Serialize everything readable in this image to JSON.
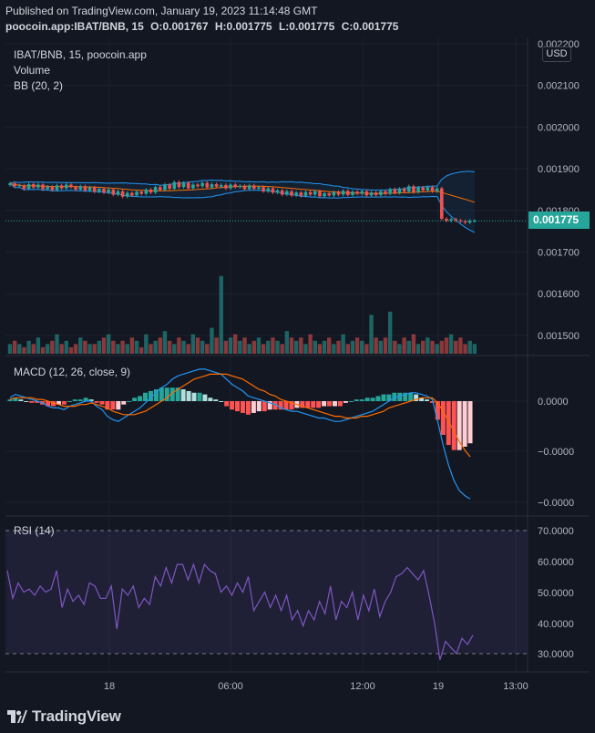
{
  "header": {
    "published": "Published on TradingView.com, January 19, 2023 11:14:48 GMT",
    "symbol_line": "poocoin.app:IBAT/BNB, 15",
    "o_label": "O:",
    "o_value": "0.001767",
    "h_label": "H:",
    "h_value": "0.001775",
    "l_label": "L:",
    "l_value": "0.001775",
    "c_label": "C:",
    "c_value": "0.001775"
  },
  "legends": {
    "main_symbol": "IBAT/BNB, 15, poocoin.app",
    "volume": "Volume",
    "bb": "BB (20, 2)",
    "macd": "MACD (12, 26, close, 9)",
    "rsi": "RSI (14)"
  },
  "currency_button": "USD",
  "last_price": "0.001775",
  "price_axis": [
    "0.002200",
    "0.002100",
    "0.002000",
    "0.001900",
    "0.001800",
    "0.001700",
    "0.001600",
    "0.001500"
  ],
  "macd_axis": [
    "0.0000",
    "−0.0000",
    "−0.0000"
  ],
  "rsi_axis": [
    "70.0000",
    "60.0000",
    "50.0000",
    "40.0000",
    "30.0000"
  ],
  "time_axis": [
    "18",
    "06:00",
    "12:00",
    "19",
    "13:00"
  ],
  "brand": "TradingView",
  "colors": {
    "background": "#131722",
    "up": "#26a69a",
    "down": "#ef5350",
    "bb_band": "#2196f3",
    "bb_basis": "#ff6d00",
    "macd_line": "#2196f3",
    "signal_line": "#ff6d00",
    "rsi_line": "#7e57c2",
    "rsi_band": "#7e57c2"
  },
  "chart_data": {
    "type": "line",
    "symbol": "IBAT/BNB",
    "interval": "15",
    "price_ylim": [
      0.00148,
      0.00222
    ],
    "close": [
      0.001865,
      0.001858,
      0.00186,
      0.001852,
      0.001863,
      0.001855,
      0.001862,
      0.001851,
      0.001857,
      0.001849,
      0.00186,
      0.001853,
      0.001862,
      0.001856,
      0.00185,
      0.001858,
      0.001848,
      0.001855,
      0.001845,
      0.001852,
      0.001843,
      0.00185,
      0.001838,
      0.001846,
      0.001833,
      0.001842,
      0.001836,
      0.001845,
      0.00184,
      0.00185,
      0.001843,
      0.001856,
      0.001849,
      0.001862,
      0.001852,
      0.001868,
      0.001856,
      0.001866,
      0.001853,
      0.001862,
      0.001858,
      0.001866,
      0.001855,
      0.001863,
      0.001857,
      0.001861,
      0.001853,
      0.001862,
      0.001856,
      0.001859,
      0.001851,
      0.00186,
      0.001852,
      0.001856,
      0.001846,
      0.001853,
      0.001843,
      0.001848,
      0.001838,
      0.001846,
      0.001836,
      0.001843,
      0.001835,
      0.001844,
      0.001838,
      0.001846,
      0.001834,
      0.001841,
      0.001836,
      0.001844,
      0.001838,
      0.001847,
      0.001837,
      0.001845,
      0.00184,
      0.001846,
      0.001836,
      0.001843,
      0.001837,
      0.001846,
      0.00184,
      0.001851,
      0.001842,
      0.001852,
      0.001845,
      0.001858,
      0.001844,
      0.001855,
      0.001848,
      0.001856,
      0.001846,
      0.001853,
      0.00178,
      0.001775,
      0.001779,
      0.001776,
      0.001774,
      0.001771,
      0.001775,
      0.001775
    ],
    "volume": [
      3,
      4,
      3,
      2,
      4,
      3,
      5,
      2,
      3,
      4,
      6,
      3,
      4,
      2,
      3,
      5,
      4,
      3,
      3,
      4,
      5,
      6,
      4,
      3,
      4,
      3,
      5,
      4,
      2,
      6,
      3,
      4,
      5,
      7,
      4,
      3,
      5,
      4,
      3,
      6,
      5,
      4,
      3,
      8,
      5,
      24,
      4,
      5,
      6,
      4,
      5,
      3,
      4,
      5,
      3,
      4,
      5,
      4,
      3,
      7,
      5,
      4,
      5,
      3,
      6,
      4,
      3,
      4,
      5,
      3,
      4,
      6,
      3,
      4,
      5,
      4,
      3,
      12,
      5,
      4,
      5,
      13,
      4,
      3,
      5,
      4,
      6,
      3,
      4,
      5,
      4,
      3,
      4,
      5,
      6,
      4,
      5,
      3,
      4,
      3
    ],
    "macd": [
      0.2,
      0.4,
      0.3,
      0.2,
      0.1,
      0.0,
      -0.1,
      -0.3,
      -0.4,
      -0.4,
      -0.5,
      -0.3,
      -0.2,
      -0.1,
      0.0,
      0.0,
      -0.3,
      -0.5,
      -0.9,
      -1.1,
      -1.2,
      -1.0,
      -0.8,
      -0.6,
      -0.4,
      -0.1,
      0.2,
      0.5,
      0.8,
      1.0,
      1.3,
      1.5,
      1.6,
      1.7,
      1.8,
      1.9,
      1.9,
      1.8,
      1.7,
      1.6,
      1.3,
      1.0,
      0.8,
      0.6,
      0.3,
      0.2,
      0.1,
      0.0,
      -0.1,
      -0.2,
      -0.4,
      -0.5,
      -0.6,
      -0.6,
      -0.7,
      -0.8,
      -0.9,
      -1.0,
      -1.0,
      -1.1,
      -1.2,
      -1.2,
      -1.1,
      -1.0,
      -0.9,
      -0.8,
      -0.7,
      -0.6,
      -0.4,
      -0.2,
      0.0,
      0.2,
      0.3,
      0.4,
      0.5,
      0.5,
      0.4,
      0.3,
      0.1,
      -1.2,
      -2.6,
      -3.8,
      -4.7,
      -5.3,
      -5.6,
      -5.8
    ],
    "signal": [
      0.1,
      0.2,
      0.2,
      0.2,
      0.2,
      0.1,
      0.1,
      0.0,
      -0.1,
      -0.2,
      -0.3,
      -0.3,
      -0.3,
      -0.2,
      -0.2,
      -0.1,
      -0.2,
      -0.3,
      -0.4,
      -0.6,
      -0.7,
      -0.8,
      -0.8,
      -0.8,
      -0.7,
      -0.6,
      -0.4,
      -0.2,
      0.0,
      0.2,
      0.5,
      0.7,
      0.9,
      1.1,
      1.3,
      1.4,
      1.5,
      1.6,
      1.6,
      1.6,
      1.6,
      1.5,
      1.4,
      1.3,
      1.1,
      0.9,
      0.7,
      0.6,
      0.4,
      0.3,
      0.1,
      0.0,
      -0.1,
      -0.2,
      -0.3,
      -0.4,
      -0.5,
      -0.6,
      -0.7,
      -0.8,
      -0.9,
      -0.9,
      -1.0,
      -1.0,
      -1.0,
      -0.9,
      -0.9,
      -0.8,
      -0.7,
      -0.6,
      -0.4,
      -0.3,
      -0.2,
      -0.1,
      0.0,
      0.1,
      0.2,
      0.2,
      0.2,
      -0.1,
      -0.6,
      -1.2,
      -1.8,
      -2.4,
      -2.9,
      -3.3
    ],
    "rsi": [
      57,
      48,
      53,
      50,
      51,
      49,
      52,
      50,
      51,
      57,
      45,
      51,
      47,
      49,
      46,
      53,
      52,
      48,
      48,
      52,
      38,
      51,
      49,
      52,
      45,
      48,
      46,
      55,
      52,
      58,
      53,
      59,
      59,
      54,
      59,
      53,
      59,
      57,
      56,
      50,
      52,
      49,
      53,
      50,
      55,
      44,
      47,
      50,
      45,
      49,
      44,
      49,
      41,
      44,
      39,
      44,
      41,
      47,
      43,
      52,
      41,
      47,
      45,
      50,
      41,
      49,
      44,
      51,
      42,
      47,
      50,
      55,
      56,
      58,
      56,
      54,
      57,
      49,
      40,
      28,
      34,
      32,
      30,
      35,
      33,
      36
    ]
  }
}
